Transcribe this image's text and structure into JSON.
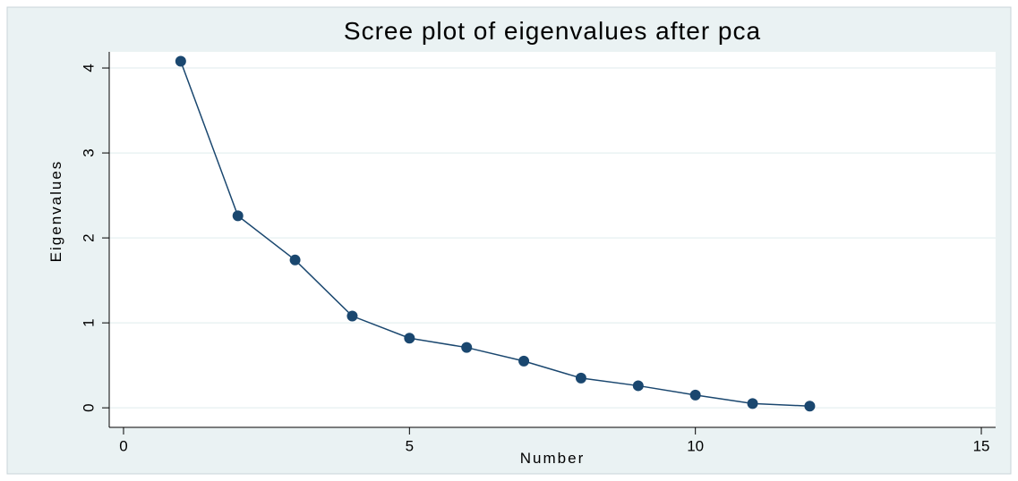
{
  "chart_data": {
    "type": "line",
    "title": "Scree plot of eigenvalues after pca",
    "x_label": "Number",
    "y_label": "Eigenvalues",
    "x": [
      1,
      2,
      3,
      4,
      5,
      6,
      7,
      8,
      9,
      10,
      11,
      12
    ],
    "values": [
      4.08,
      2.26,
      1.74,
      1.08,
      0.82,
      0.71,
      0.55,
      0.35,
      0.26,
      0.15,
      0.05,
      0.02
    ],
    "color": "#1a476f",
    "xlim": [
      -0.25,
      15.25
    ],
    "xticks": [
      0,
      5,
      10,
      15
    ],
    "ylim": [
      -0.23,
      4.19
    ],
    "yticks": [
      0,
      1,
      2,
      3,
      4
    ],
    "grid": true
  }
}
